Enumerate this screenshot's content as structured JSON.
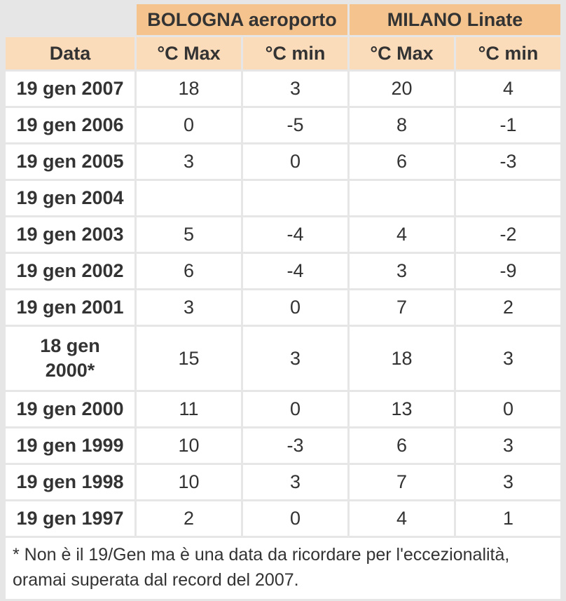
{
  "page": {
    "background_color": "#e6e6e6",
    "text_color": "#333333"
  },
  "table": {
    "corner_label": "",
    "group_headers": [
      {
        "label": "BOLOGNA aeroporto",
        "bg_color": "#f5c48e"
      },
      {
        "label": "MILANO Linate",
        "bg_color": "#f5c48e"
      }
    ],
    "column_headers": [
      "Data",
      "°C Max",
      "°C min",
      "°C Max",
      "°C min"
    ],
    "column_header_bg_color": "#fbdcba",
    "rows": [
      {
        "date": "19 gen 2007",
        "values": [
          "18",
          "3",
          "20",
          "4"
        ]
      },
      {
        "date": "19 gen 2006",
        "values": [
          "0",
          "-5",
          "8",
          "-1"
        ]
      },
      {
        "date": "19 gen 2005",
        "values": [
          "3",
          "0",
          "6",
          "-3"
        ]
      },
      {
        "date": "19 gen 2004",
        "values": [
          "",
          "",
          "",
          ""
        ]
      },
      {
        "date": "19 gen 2003",
        "values": [
          "5",
          "-4",
          "4",
          "-2"
        ]
      },
      {
        "date": "19 gen 2002",
        "values": [
          "6",
          "-4",
          "3",
          "-9"
        ]
      },
      {
        "date": "19 gen 2001",
        "values": [
          "3",
          "0",
          "7",
          "2"
        ]
      },
      {
        "date": "18 gen\n2000*",
        "two_line": true,
        "values": [
          "15",
          "3",
          "18",
          "3"
        ]
      },
      {
        "date": "19 gen 2000",
        "values": [
          "11",
          "0",
          "13",
          "0"
        ]
      },
      {
        "date": "19 gen 1999",
        "values": [
          "10",
          "-3",
          "6",
          "3"
        ]
      },
      {
        "date": "19 gen 1998",
        "values": [
          "10",
          "3",
          "7",
          "3"
        ]
      },
      {
        "date": "19 gen 1997",
        "values": [
          "2",
          "0",
          "4",
          "1"
        ]
      }
    ],
    "footnote": "* Non è il 19/Gen ma è una data da ricordare per l'eccezionalità, oramai superata dal record del 2007."
  },
  "chart_data": {
    "type": "table",
    "title": "Temperature del 19 gennaio: BOLOGNA aeroporto e MILANO Linate",
    "column_groups": [
      "",
      "BOLOGNA aeroporto",
      "BOLOGNA aeroporto",
      "MILANO Linate",
      "MILANO Linate"
    ],
    "columns": [
      "Data",
      "BOLOGNA °C Max",
      "BOLOGNA °C min",
      "MILANO °C Max",
      "MILANO °C min"
    ],
    "rows": [
      [
        "19 gen 2007",
        18,
        3,
        20,
        4
      ],
      [
        "19 gen 2006",
        0,
        -5,
        8,
        -1
      ],
      [
        "19 gen 2005",
        3,
        0,
        6,
        -3
      ],
      [
        "19 gen 2004",
        null,
        null,
        null,
        null
      ],
      [
        "19 gen 2003",
        5,
        -4,
        4,
        -2
      ],
      [
        "19 gen 2002",
        6,
        -4,
        3,
        -9
      ],
      [
        "19 gen 2001",
        3,
        0,
        7,
        2
      ],
      [
        "18 gen 2000*",
        15,
        3,
        18,
        3
      ],
      [
        "19 gen 2000",
        11,
        0,
        13,
        0
      ],
      [
        "19 gen 1999",
        10,
        -3,
        6,
        3
      ],
      [
        "19 gen 1998",
        10,
        3,
        7,
        3
      ],
      [
        "19 gen 1997",
        2,
        0,
        4,
        1
      ]
    ],
    "footnote": "* Non è il 19/Gen ma è una data da ricordare per l'eccezionalità, oramai superata dal record del 2007."
  }
}
